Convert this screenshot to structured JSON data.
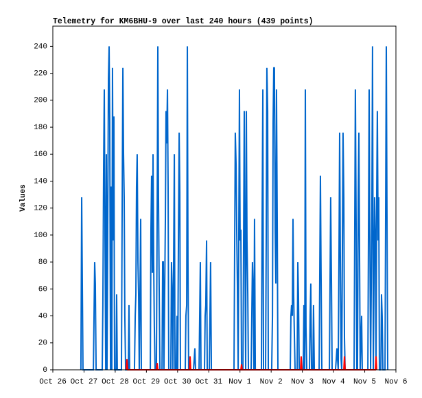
{
  "chart_data": {
    "type": "line",
    "title": "Telemetry for KM6BHU-9 over last 240 hours (439 points)",
    "y_label": "Values",
    "xlim": [
      0,
      264
    ],
    "xticks": [
      {
        "value": 0,
        "label": "Oct 26"
      },
      {
        "value": 24,
        "label": "Oct 27"
      },
      {
        "value": 48,
        "label": "Oct 28"
      },
      {
        "value": 72,
        "label": "Oct 29"
      },
      {
        "value": 96,
        "label": "Oct 30"
      },
      {
        "value": 120,
        "label": "Oct 31"
      },
      {
        "value": 144,
        "label": "Nov 1"
      },
      {
        "value": 168,
        "label": "Nov 2"
      },
      {
        "value": 192,
        "label": "Nov 3"
      },
      {
        "value": 216,
        "label": "Nov 4"
      },
      {
        "value": 240,
        "label": "Nov 5"
      },
      {
        "value": 264,
        "label": "Nov 6"
      }
    ],
    "ylim": [
      0,
      255
    ],
    "yticks": [
      0,
      20,
      40,
      60,
      80,
      100,
      120,
      140,
      160,
      180,
      200,
      220,
      240
    ],
    "grid": false,
    "series": [
      {
        "color": "#0066cc",
        "x": [
          21.6,
          22.2,
          22.7,
          23.2,
          31.2,
          31.7,
          32.2,
          32.7,
          33.3,
          38.0,
          38.5,
          39.1,
          39.6,
          40.1,
          40.7,
          41.2,
          41.7,
          42.8,
          43.3,
          43.8,
          44.4,
          44.9,
          45.4,
          45.9,
          46.5,
          47.0,
          47.5,
          48.6,
          49.1,
          49.6,
          52.8,
          53.3,
          53.9,
          54.4,
          54.9,
          55.4,
          56.0,
          58.1,
          58.6,
          59.1,
          62.8,
          63.4,
          63.9,
          64.4,
          64.9,
          65.5,
          66.0,
          66.5,
          67.6,
          68.1,
          75.0,
          75.5,
          76.0,
          76.6,
          77.1,
          77.6,
          78.1,
          78.7,
          79.7,
          80.3,
          80.8,
          81.3,
          81.8,
          82.4,
          84.0,
          84.5,
          85.0,
          85.5,
          86.6,
          87.1,
          87.6,
          88.2,
          88.7,
          89.2,
          90.8,
          91.3,
          91.9,
          92.4,
          93.5,
          94.0,
          95.0,
          95.6,
          96.1,
          96.6,
          97.2,
          97.7,
          98.2,
          101.9,
          102.4,
          103.0,
          103.5,
          104.0,
          104.5,
          108.2,
          108.8,
          109.3,
          109.8,
          112.5,
          113.0,
          113.5,
          114.0,
          116.7,
          117.2,
          117.7,
          118.3,
          118.8,
          120.4,
          120.9,
          121.4,
          122.0,
          139.4,
          139.9,
          140.4,
          141.0,
          141.5,
          142.0,
          142.6,
          143.6,
          144.1,
          144.7,
          145.2,
          146.3,
          146.8,
          147.3,
          147.8,
          148.4,
          148.9,
          149.4,
          150.0,
          150.5,
          152.6,
          153.1,
          153.6,
          154.2,
          154.7,
          155.2,
          155.8,
          160.5,
          161.0,
          161.6,
          162.1,
          163.7,
          164.2,
          164.7,
          165.3,
          165.8,
          168.4,
          169.0,
          169.5,
          170.0,
          170.5,
          171.1,
          171.6,
          172.1,
          172.7,
          173.2,
          182.7,
          183.2,
          183.7,
          184.3,
          184.8,
          185.3,
          185.9,
          186.4,
          188.0,
          188.5,
          189.0,
          189.6,
          192.7,
          193.2,
          193.8,
          194.3,
          194.8,
          195.4,
          197.5,
          198.0,
          198.5,
          199.1,
          200.1,
          200.6,
          201.2,
          204.9,
          205.4,
          205.9,
          206.4,
          207.0,
          212.8,
          213.3,
          213.8,
          214.4,
          214.9,
          217.5,
          218.1,
          218.6,
          219.1,
          219.6,
          220.2,
          220.7,
          221.2,
          221.8,
          222.3,
          222.8,
          223.3,
          223.9,
          224.4,
          224.9,
          231.8,
          232.3,
          232.8,
          233.4,
          233.9,
          234.4,
          235.0,
          235.5,
          236.0,
          236.5,
          237.6,
          238.1,
          242.4,
          242.9,
          243.4,
          243.9,
          244.5,
          245.5,
          246.0,
          246.6,
          247.1,
          247.6,
          248.2,
          248.7,
          249.2,
          249.7,
          250.3,
          250.8,
          251.3,
          252.4,
          252.9,
          253.4,
          254.0,
          255.6,
          256.1,
          256.6,
          257.1,
          257.7
        ],
        "values": [
          0,
          128,
          64,
          0,
          0,
          40,
          80,
          64,
          0,
          0,
          48,
          152,
          208,
          104,
          0,
          160,
          0,
          216,
          240,
          184,
          0,
          136,
          0,
          224,
          96,
          188,
          0,
          0,
          56,
          0,
          0,
          112,
          224,
          160,
          128,
          40,
          0,
          0,
          48,
          0,
          0,
          40,
          56,
          136,
          160,
          80,
          56,
          0,
          112,
          0,
          0,
          104,
          144,
          72,
          160,
          80,
          32,
          0,
          0,
          120,
          240,
          128,
          64,
          0,
          0,
          80,
          80,
          0,
          112,
          192,
          168,
          208,
          136,
          0,
          0,
          80,
          56,
          0,
          160,
          0,
          0,
          40,
          0,
          88,
          176,
          132,
          0,
          0,
          40,
          48,
          240,
          80,
          0,
          0,
          8,
          16,
          0,
          0,
          40,
          80,
          0,
          0,
          40,
          48,
          96,
          0,
          0,
          40,
          80,
          0,
          0,
          88,
          176,
          152,
          104,
          64,
          0,
          208,
          96,
          104,
          0,
          0,
          96,
          192,
          96,
          0,
          192,
          96,
          56,
          0,
          0,
          40,
          80,
          56,
          0,
          112,
          0,
          0,
          104,
          208,
          0,
          0,
          96,
          224,
          192,
          0,
          0,
          40,
          184,
          224,
          224,
          104,
          64,
          208,
          104,
          0,
          0,
          40,
          48,
          40,
          112,
          56,
          24,
          0,
          0,
          80,
          56,
          0,
          0,
          48,
          0,
          208,
          32,
          0,
          0,
          40,
          64,
          0,
          0,
          48,
          0,
          0,
          72,
          144,
          72,
          0,
          0,
          64,
          128,
          64,
          0,
          0,
          8,
          16,
          8,
          0,
          88,
          176,
          88,
          8,
          0,
          88,
          176,
          128,
          24,
          0,
          0,
          104,
          208,
          104,
          0,
          0,
          128,
          176,
          88,
          0,
          40,
          0,
          0,
          104,
          208,
          104,
          0,
          120,
          240,
          0,
          64,
          128,
          96,
          0,
          128,
          192,
          96,
          128,
          0,
          0,
          56,
          40,
          0,
          0,
          120,
          240,
          120,
          0
        ]
      },
      {
        "color": "#ff0000",
        "x": [
          56.5,
          57.0,
          57.6,
          79.7,
          80.3,
          80.8,
          105.1,
          105.6,
          106.1,
          144.7,
          145.2,
          145.7,
          190.6,
          191.1,
          191.7,
          223.9,
          224.4,
          224.9,
          248.2,
          248.7,
          249.2
        ],
        "values": [
          0,
          8,
          0,
          0,
          5,
          0,
          0,
          10,
          0,
          0,
          4,
          0,
          0,
          10,
          0,
          0,
          10,
          0,
          0,
          10,
          0
        ]
      }
    ]
  }
}
